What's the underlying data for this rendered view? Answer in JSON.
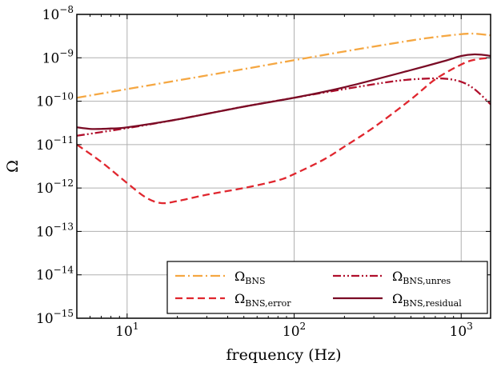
{
  "chart_data": {
    "type": "line",
    "xlabel": "frequency (Hz)",
    "ylabel": "Ω",
    "x_scale": "log",
    "y_scale": "log",
    "xlim": [
      5,
      1500
    ],
    "ylim": [
      1e-15,
      1e-08
    ],
    "grid": true,
    "legend_position": "bottom-right",
    "x_ticks": [
      {
        "value": 10,
        "base": "10",
        "exp": "1"
      },
      {
        "value": 100,
        "base": "10",
        "exp": "2"
      },
      {
        "value": 1000,
        "base": "10",
        "exp": "3"
      }
    ],
    "y_ticks": [
      {
        "value": 1e-08,
        "base": "10",
        "exp": "−8"
      },
      {
        "value": 1e-09,
        "base": "10",
        "exp": "−9"
      },
      {
        "value": 1e-10,
        "base": "10",
        "exp": "−10"
      },
      {
        "value": 1e-11,
        "base": "10",
        "exp": "−11"
      },
      {
        "value": 1e-12,
        "base": "10",
        "exp": "−12"
      },
      {
        "value": 1e-13,
        "base": "10",
        "exp": "−13"
      },
      {
        "value": 1e-14,
        "base": "10",
        "exp": "−14"
      },
      {
        "value": 1e-15,
        "base": "10",
        "exp": "−15"
      }
    ],
    "series": [
      {
        "name_base": "Ω",
        "name_sub": "BNS",
        "color": "#f5a742",
        "dash": "dashdot",
        "x": [
          5,
          10,
          20,
          50,
          100,
          200,
          500,
          700,
          1000,
          1200,
          1500
        ],
        "y": [
          1.2e-10,
          1.9e-10,
          3e-10,
          5.5e-10,
          8.8e-10,
          1.4e-09,
          2.5e-09,
          3e-09,
          3.5e-09,
          3.6e-09,
          3.3e-09
        ]
      },
      {
        "name_base": "Ω",
        "name_sub": "BNS,error",
        "color": "#e0262e",
        "dash": "dashed",
        "x": [
          5,
          7,
          10,
          13,
          16,
          20,
          30,
          50,
          80,
          100,
          150,
          200,
          300,
          500,
          700,
          1000,
          1200,
          1500
        ],
        "y": [
          1e-11,
          4e-12,
          1.3e-12,
          6e-13,
          4.5e-13,
          5e-13,
          7e-13,
          1e-12,
          1.5e-12,
          2.1e-12,
          4.5e-12,
          9e-12,
          2.5e-11,
          1.1e-10,
          3.2e-10,
          7e-10,
          9e-10,
          1e-09
        ]
      },
      {
        "name_base": "Ω",
        "name_sub": "BNS,unres",
        "color": "#b00f2c",
        "dash": "dashdotdot",
        "x": [
          5,
          10,
          20,
          50,
          100,
          200,
          400,
          600,
          800,
          1000,
          1200,
          1500
        ],
        "y": [
          1.6e-11,
          2.4e-11,
          3.8e-11,
          7.5e-11,
          1.2e-10,
          1.9e-10,
          2.9e-10,
          3.3e-10,
          3.3e-10,
          2.8e-10,
          1.9e-10,
          8.5e-11
        ]
      },
      {
        "name_base": "Ω",
        "name_sub": "BNS,residual",
        "color": "#7a0b25",
        "dash": "solid",
        "x": [
          5,
          6,
          7,
          8,
          10,
          20,
          50,
          100,
          200,
          500,
          800,
          1000,
          1200,
          1400,
          1500
        ],
        "y": [
          2.5e-11,
          2.3e-11,
          2.3e-11,
          2.35e-11,
          2.5e-11,
          3.8e-11,
          7.5e-11,
          1.2e-10,
          2.1e-10,
          5.2e-10,
          8.5e-10,
          1.1e-09,
          1.2e-09,
          1.15e-09,
          1.1e-09
        ]
      }
    ]
  }
}
